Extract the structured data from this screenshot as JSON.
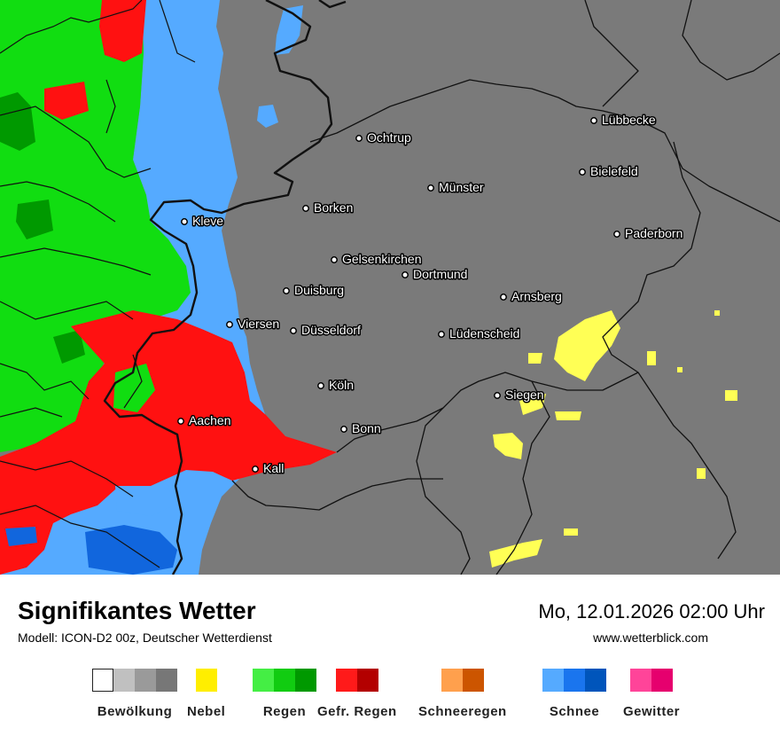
{
  "title": "Signifikantes Wetter",
  "subtitle": "Modell: ICON-D2 00z, Deutscher Wetterdienst",
  "datetime": "Mo, 12.01.2026 02:00 Uhr",
  "website": "www.wetterblick.com",
  "colors": {
    "background_gray": "#7a7a7a",
    "rain_green": "#11dd11",
    "freezing_rain_red": "#ff1111",
    "snow_blue": "#55aaff",
    "snow_dark_blue": "#1166dd",
    "fog_yellow": "#ffff55",
    "border": "#111111"
  },
  "cities": [
    {
      "name": "Lübbecke"
    },
    {
      "name": "Ochtrup"
    },
    {
      "name": "Bielefeld"
    },
    {
      "name": "Münster"
    },
    {
      "name": "Borken"
    },
    {
      "name": "Kleve"
    },
    {
      "name": "Paderborn"
    },
    {
      "name": "Gelsenkirchen"
    },
    {
      "name": "Dortmund"
    },
    {
      "name": "Duisburg"
    },
    {
      "name": "Arnsberg"
    },
    {
      "name": "Viersen"
    },
    {
      "name": "Düsseldorf"
    },
    {
      "name": "Lüdenscheid"
    },
    {
      "name": "Köln"
    },
    {
      "name": "Siegen"
    },
    {
      "name": "Aachen"
    },
    {
      "name": "Bonn"
    },
    {
      "name": "Kall"
    }
  ],
  "legend": [
    {
      "label": "Bewölkung",
      "colors": [
        "#ffffff",
        "#c0c0c0",
        "#9a9a9a",
        "#777777"
      ]
    },
    {
      "label": "Nebel",
      "colors": [
        "#ffee00"
      ]
    },
    {
      "label": "Regen",
      "colors": [
        "#44ee44",
        "#11cc11",
        "#009900"
      ]
    },
    {
      "label": "Gefr. Regen",
      "colors": [
        "#ff1a1a",
        "#b30000"
      ]
    },
    {
      "label": "Schneeregen",
      "colors": [
        "#ffa04d",
        "#cc5500"
      ]
    },
    {
      "label": "Schnee",
      "colors": [
        "#55aaff",
        "#1a75ee",
        "#0055bb"
      ]
    },
    {
      "label": "Gewitter",
      "colors": [
        "#ff4499",
        "#e6006e"
      ]
    }
  ]
}
